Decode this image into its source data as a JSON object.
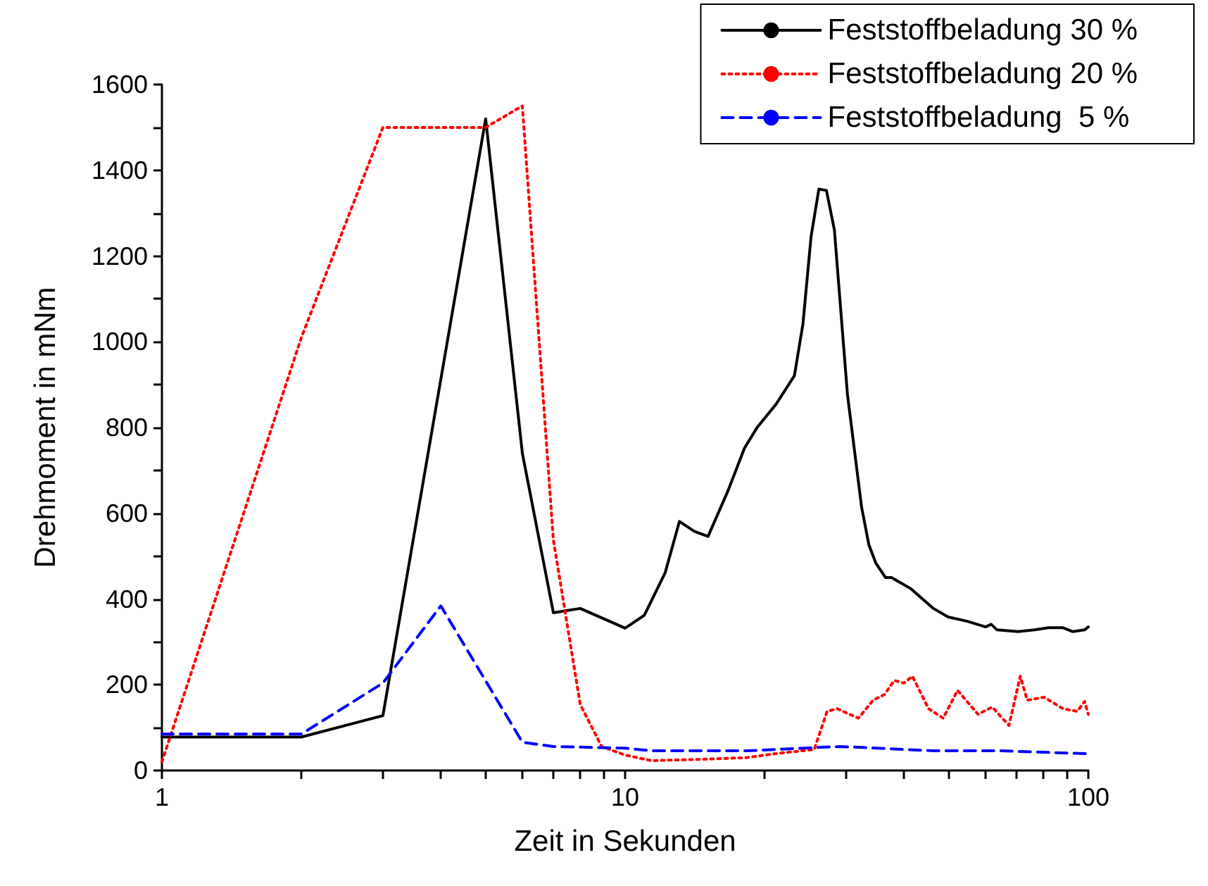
{
  "chart_data": {
    "type": "line",
    "xlabel": "Zeit in Sekunden",
    "ylabel": "Drehmoment in mNm",
    "log": "x",
    "xlim": [
      1,
      100
    ],
    "xticks": [
      1,
      {
        "value": 2,
        "label": null
      },
      {
        "value": 3,
        "label": null
      },
      {
        "value": 4,
        "label": null
      },
      {
        "value": 5,
        "label": null
      },
      {
        "value": 6,
        "label": null
      },
      {
        "value": 7,
        "label": null
      },
      {
        "value": 8,
        "label": null
      },
      {
        "value": 9,
        "label": null
      },
      10,
      {
        "value": 20,
        "label": null
      },
      {
        "value": 30,
        "label": null
      },
      {
        "value": 40,
        "label": null
      },
      {
        "value": 50,
        "label": null
      },
      {
        "value": 60,
        "label": null
      },
      {
        "value": 70,
        "label": null
      },
      {
        "value": 80,
        "label": null
      },
      {
        "value": 90,
        "label": null
      },
      100
    ],
    "ylim": [
      0,
      1600
    ],
    "yticks": [
      0,
      {
        "value": 100,
        "label": null
      },
      200,
      {
        "value": 300,
        "label": null
      },
      400,
      {
        "value": 500,
        "label": null
      },
      600,
      {
        "value": 700,
        "label": null
      },
      800,
      {
        "value": 900,
        "label": null
      },
      1000,
      {
        "value": 1100,
        "label": null
      },
      1200,
      {
        "value": 1300,
        "label": null
      },
      1400,
      {
        "value": 1500,
        "label": null
      },
      1600
    ],
    "grid": false,
    "legend": "top right",
    "marker": "none",
    "series": [
      {
        "name": "Feststoffbeladung 30 %",
        "color": "#000000",
        "line_style": "solid",
        "x": [
          1,
          2,
          3,
          5,
          6,
          7,
          8,
          10,
          11,
          12.2,
          13.1,
          14.1,
          15.1,
          16.7,
          18.1,
          19.3,
          21.2,
          23.2,
          24.2,
          25.2,
          26.2,
          27.2,
          28.3,
          30.2,
          32.4,
          33.6,
          34.8,
          36.5,
          37.6,
          41.4,
          46.3,
          49.8,
          54.8,
          60,
          61.7,
          63.5,
          70.5,
          76.6,
          82.1,
          88.2,
          92.6,
          98.2,
          100
        ],
        "values": [
          78,
          78,
          128,
          1520,
          740,
          368,
          378,
          332,
          362,
          461,
          581,
          558,
          546,
          654,
          752,
          801,
          855,
          921,
          1041,
          1245,
          1356,
          1353,
          1261,
          877,
          614,
          526,
          483,
          450,
          450,
          424,
          378,
          358,
          348,
          335,
          341,
          328,
          324,
          328,
          333,
          333,
          324,
          328,
          335
        ]
      },
      {
        "name": "Feststoffbeladung 20 %",
        "color": "#ff0000",
        "line_style": "dotted",
        "x": [
          1,
          2,
          3,
          5,
          6,
          7,
          8,
          8.9,
          10,
          11.4,
          14.5,
          18.3,
          21,
          25.6,
          27.3,
          28.7,
          31.9,
          34.3,
          36.3,
          38.1,
          40,
          41.7,
          45.2,
          48.6,
          52.2,
          57.8,
          62,
          67.4,
          71.3,
          73.8,
          80.3,
          88.2,
          94.6,
          98.2,
          100
        ],
        "values": [
          20,
          1010,
          1500,
          1500,
          1550,
          538,
          154,
          56,
          36,
          23,
          26,
          30,
          39,
          49,
          138,
          144,
          122,
          164,
          177,
          210,
          204,
          220,
          144,
          122,
          187,
          131,
          148,
          105,
          220,
          164,
          171,
          144,
          138,
          161,
          131
        ]
      },
      {
        "name": "Feststoffbeladung  5 %",
        "color": "#0000ff",
        "line_style": "dashed",
        "x": [
          1,
          2,
          3,
          4,
          6,
          7,
          10,
          11.4,
          18.3,
          29.1,
          46.3,
          64.6,
          100
        ],
        "values": [
          85,
          85,
          204,
          384,
          66,
          56,
          52,
          46,
          46,
          56,
          46,
          46,
          39
        ]
      }
    ]
  }
}
